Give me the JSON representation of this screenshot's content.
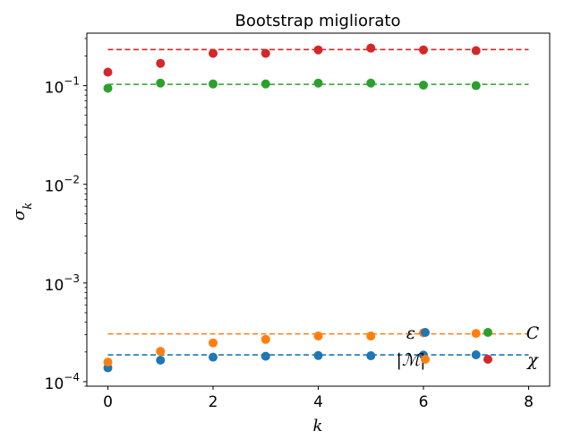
{
  "chart_data": {
    "type": "scatter",
    "title": "Bootstrap migliorato",
    "xlabel": "k",
    "ylabel": "σ_k",
    "xlim": [
      -0.4,
      8.4
    ],
    "ylim": [
      9e-05,
      0.34
    ],
    "yscale": "log",
    "x_ticks": [
      0,
      2,
      4,
      6,
      8
    ],
    "y_ticks": [
      0.0001,
      0.001,
      0.01,
      0.1
    ],
    "y_tick_labels": [
      {
        "base": "10",
        "exp": "−4"
      },
      {
        "base": "10",
        "exp": "−3"
      },
      {
        "base": "10",
        "exp": "−2"
      },
      {
        "base": "10",
        "exp": "−1"
      }
    ],
    "grid": false,
    "legend_placement": "bottom-right",
    "series": [
      {
        "name": "ε",
        "color": "#1f77b4",
        "x": [
          0,
          1,
          2,
          3,
          4,
          5,
          6,
          7
        ],
        "values": [
          0.000138,
          0.000165,
          0.000177,
          0.000181,
          0.000184,
          0.000183,
          0.000186,
          0.000187
        ],
        "reference": 0.000187
      },
      {
        "name": "|ℳ|",
        "color": "#ff7f0e",
        "x": [
          0,
          1,
          2,
          3,
          4,
          5,
          6,
          7
        ],
        "values": [
          0.000158,
          0.000203,
          0.000247,
          0.000268,
          0.00029,
          0.00029,
          0.000313,
          0.000308
        ],
        "reference": 0.000305
      },
      {
        "name": "C",
        "color": "#2ca02c",
        "x": [
          0,
          1,
          2,
          3,
          4,
          5,
          6,
          7
        ],
        "values": [
          0.094,
          0.106,
          0.104,
          0.104,
          0.106,
          0.106,
          0.101,
          0.1
        ],
        "reference": 0.103
      },
      {
        "name": "χ",
        "color": "#d62728",
        "x": [
          0,
          1,
          2,
          3,
          4,
          5,
          6,
          7
        ],
        "values": [
          0.137,
          0.168,
          0.212,
          0.212,
          0.23,
          0.24,
          0.23,
          0.226
        ],
        "reference": 0.232
      }
    ],
    "legend": [
      {
        "series": 0,
        "label": "ε"
      },
      {
        "series": 2,
        "label": "C"
      },
      {
        "series": 1,
        "label": "|ℳ|"
      },
      {
        "series": 3,
        "label": "χ"
      }
    ]
  }
}
